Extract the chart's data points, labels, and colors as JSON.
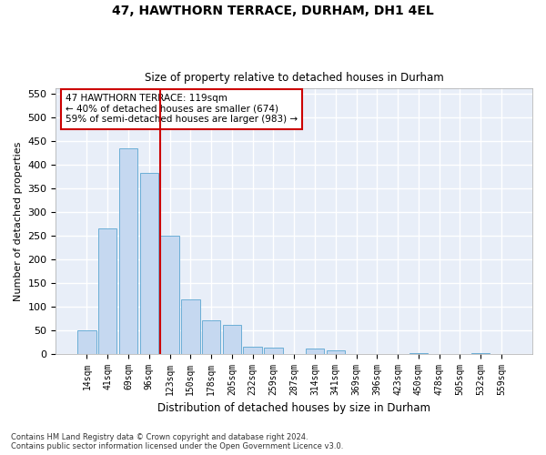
{
  "title1": "47, HAWTHORN TERRACE, DURHAM, DH1 4EL",
  "title2": "Size of property relative to detached houses in Durham",
  "xlabel": "Distribution of detached houses by size in Durham",
  "ylabel": "Number of detached properties",
  "footnote1": "Contains HM Land Registry data © Crown copyright and database right 2024.",
  "footnote2": "Contains public sector information licensed under the Open Government Licence v3.0.",
  "bar_labels": [
    "14sqm",
    "41sqm",
    "69sqm",
    "96sqm",
    "123sqm",
    "150sqm",
    "178sqm",
    "205sqm",
    "232sqm",
    "259sqm",
    "287sqm",
    "314sqm",
    "341sqm",
    "369sqm",
    "396sqm",
    "423sqm",
    "450sqm",
    "478sqm",
    "505sqm",
    "532sqm",
    "559sqm"
  ],
  "bar_values": [
    50,
    265,
    433,
    382,
    250,
    115,
    70,
    60,
    15,
    12,
    0,
    10,
    7,
    0,
    0,
    0,
    2,
    0,
    0,
    1,
    0
  ],
  "bar_color": "#c5d8f0",
  "bar_edge_color": "#6baed6",
  "background_color": "#e8eef8",
  "grid_color": "#ffffff",
  "vline_color": "#cc0000",
  "annotation_text": "47 HAWTHORN TERRACE: 119sqm\n← 40% of detached houses are smaller (674)\n59% of semi-detached houses are larger (983) →",
  "annotation_box_color": "#cc0000",
  "ylim": [
    0,
    560
  ],
  "yticks": [
    0,
    50,
    100,
    150,
    200,
    250,
    300,
    350,
    400,
    450,
    500,
    550
  ]
}
